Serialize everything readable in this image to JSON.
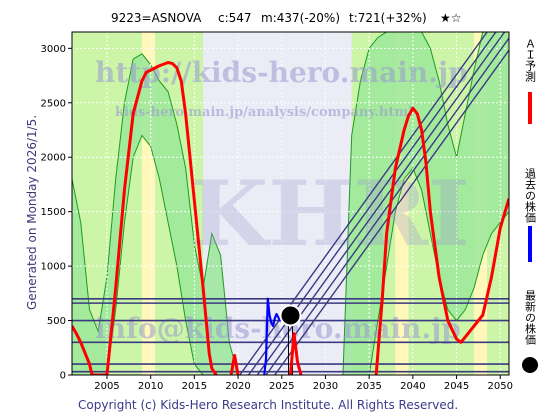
{
  "header": {
    "code_name": "9223=ASNOVA",
    "current": "c:547",
    "mean": "m:437(-20%)",
    "target": "t:721(+32%)",
    "stars": "★☆"
  },
  "side_text": "Generated on Monday 2026/1/5.",
  "copyright": "Copyright (c) Kids-Hero Research Institute. All Rights Reserved.",
  "watermark": {
    "url": "http://kids-hero.main.jp",
    "url_path": "kids-hero.main.jp/analysis/company.html",
    "logo": "KHRI",
    "email": "info@kids-hero.main.jp"
  },
  "legend": [
    {
      "label": "ＡＩ予測",
      "color": "#ff0000",
      "marker": "line"
    },
    {
      "label": "過去の株価",
      "color": "#0000ff",
      "marker": "line"
    },
    {
      "label": "最新の株価",
      "color": "#000000",
      "marker": "dot"
    }
  ],
  "colors": {
    "prediction": "#ff0000",
    "price": "#0000ff",
    "band_fill": "#9be89b",
    "band_line": "#1f9a1f",
    "light_green": "#ccf5a8",
    "yellow": "#fff8b8",
    "navy": "#3a3a80"
  },
  "chart_data": {
    "type": "line",
    "xlim": [
      2001,
      2051
    ],
    "ylim": [
      0,
      3150
    ],
    "x_ticks": [
      2005,
      2010,
      2015,
      2020,
      2025,
      2030,
      2035,
      2040,
      2045,
      2050
    ],
    "y_ticks": [
      0,
      500,
      1000,
      1500,
      2000,
      2500,
      3000
    ],
    "grid": true,
    "legend_position": "right",
    "series": [
      {
        "name": "ＡＩ予測",
        "x": [
          2001,
          2001.5,
          2002,
          2002.5,
          2003,
          2003.3,
          2005,
          2006,
          2007,
          2008,
          2009,
          2009.5,
          2010,
          2011,
          2012,
          2012.5,
          2013,
          2013.5,
          2014,
          2015,
          2016,
          2016.7,
          2017,
          2017.5
        ],
        "y": [
          450,
          380,
          300,
          200,
          100,
          0,
          0,
          800,
          1700,
          2400,
          2700,
          2780,
          2800,
          2840,
          2870,
          2860,
          2820,
          2700,
          2400,
          1600,
          800,
          200,
          60,
          0
        ]
      },
      {
        "name": "ＡＩ予測",
        "x": [
          2019.2,
          2019.6,
          2020
        ],
        "y": [
          0,
          180,
          0
        ]
      },
      {
        "name": "ＡＩ予測",
        "x": [
          2026,
          2026.4,
          2026.8,
          2027.2
        ],
        "y": [
          0,
          380,
          120,
          0
        ]
      },
      {
        "name": "ＡＩ予測",
        "x": [
          2035.8,
          2036.5,
          2037,
          2038,
          2039,
          2039.5,
          2040,
          2040.5,
          2041,
          2041.5,
          2042,
          2043,
          2044,
          2045,
          2045.5,
          2046,
          2047,
          2048,
          2049,
          2050,
          2051
        ],
        "y": [
          0,
          700,
          1300,
          1900,
          2250,
          2380,
          2450,
          2400,
          2250,
          1950,
          1500,
          900,
          500,
          330,
          300,
          350,
          450,
          550,
          900,
          1350,
          1620
        ]
      },
      {
        "name": "過去の株価",
        "x": [
          2023,
          2023.2,
          2023.4,
          2023.6,
          2023.8,
          2024,
          2024.2,
          2024.4,
          2024.6,
          2024.8,
          2025,
          2025.2,
          2025.4,
          2025.7,
          2026
        ],
        "y": [
          0,
          150,
          700,
          550,
          480,
          450,
          520,
          560,
          530,
          500,
          520,
          560,
          540,
          550,
          547
        ]
      }
    ],
    "latest": {
      "x": 2026,
      "y": 547
    },
    "horizontal_lines": [
      30,
      100,
      300,
      500,
      660,
      700
    ],
    "channel_lines": [
      {
        "x0": 2020.2,
        "y0": 0,
        "x1": 2048.5,
        "y1": 3150
      },
      {
        "x0": 2021.2,
        "y0": 0,
        "x1": 2049.5,
        "y1": 3150
      },
      {
        "x0": 2022.2,
        "y0": 0,
        "x1": 2050.5,
        "y1": 3150
      },
      {
        "x0": 2023.2,
        "y0": 0,
        "x1": 2051.5,
        "y1": 3150
      },
      {
        "x0": 2024.2,
        "y0": 0,
        "x1": 2052.5,
        "y1": 3150
      }
    ],
    "vertical_markers": [
      2026
    ],
    "band": {
      "x": [
        2001,
        2002,
        2003,
        2004,
        2005,
        2006,
        2007,
        2008,
        2009,
        2010,
        2011,
        2012,
        2013,
        2014,
        2015,
        2016,
        2017,
        2018,
        2019,
        2020,
        2021,
        2022,
        2023,
        2024,
        2025,
        2026,
        2027,
        2028,
        2029,
        2030,
        2031,
        2032,
        2033,
        2034,
        2035,
        2036,
        2037,
        2038,
        2039,
        2040,
        2041,
        2042,
        2043,
        2044,
        2045,
        2046,
        2047,
        2048,
        2049,
        2050,
        2051
      ],
      "lower": [
        0,
        0,
        0,
        0,
        0,
        600,
        1400,
        2000,
        2200,
        2100,
        1800,
        1400,
        1000,
        500,
        100,
        0,
        0,
        0,
        0,
        0,
        0,
        0,
        0,
        0,
        0,
        0,
        0,
        0,
        0,
        0,
        0,
        0,
        0,
        0,
        0,
        500,
        1000,
        1500,
        1800,
        1900,
        1700,
        1300,
        900,
        600,
        500,
        600,
        800,
        1100,
        1300,
        1400,
        1500
      ],
      "upper": [
        1800,
        1400,
        600,
        400,
        900,
        1800,
        2500,
        2900,
        2950,
        2850,
        2700,
        2600,
        2300,
        1900,
        1200,
        800,
        1300,
        1100,
        300,
        0,
        0,
        0,
        0,
        0,
        0,
        0,
        0,
        0,
        0,
        0,
        0,
        0,
        2200,
        2700,
        3000,
        3100,
        3150,
        3150,
        3150,
        3150,
        3150,
        3000,
        2700,
        2300,
        2000,
        2400,
        2800,
        3150,
        3150,
        3150,
        3150
      ]
    }
  }
}
